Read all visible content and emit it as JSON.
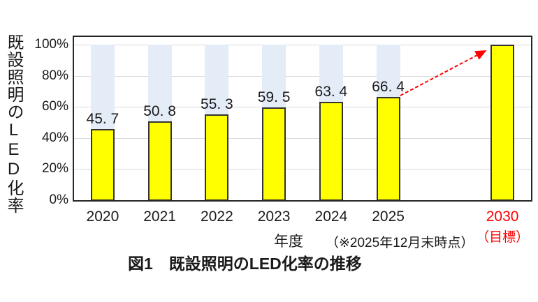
{
  "figure": {
    "caption": "図1　既設照明のLED化率の推移",
    "y_axis_title": "既設照明のLED化率",
    "x_axis_title": "年度",
    "x_axis_note": "（※2025年12月末時点）",
    "target_sub_label": "（目標）"
  },
  "colors": {
    "bar_fill": "#FFFF00",
    "bar_border": "#333333",
    "bg_track": "#E3ECF7",
    "gridline": "#D9D9D9",
    "plot_border": "#262626",
    "text": "#1A1A1A",
    "target_red": "#FF0000"
  },
  "chart_data": {
    "type": "bar",
    "title": "図1　既設照明のLED化率の推移",
    "xlabel": "年度",
    "ylabel": "既設照明のLED化率",
    "ylim": [
      0,
      105
    ],
    "yticks": [
      0,
      20,
      40,
      60,
      80,
      100
    ],
    "ytick_labels": [
      "0%",
      "20%",
      "40%",
      "60%",
      "80%",
      "100%"
    ],
    "grid": true,
    "legend_position": "none",
    "n_slots": 8,
    "categories": [
      "2020",
      "2021",
      "2022",
      "2023",
      "2024",
      "2025",
      "2030"
    ],
    "slots": [
      0,
      1,
      2,
      3,
      4,
      5,
      7
    ],
    "values": [
      45.7,
      50.8,
      55.3,
      59.5,
      63.4,
      66.4,
      100
    ],
    "value_labels": [
      "45. 7",
      "50. 8",
      "55. 3",
      "59. 5",
      "63. 4",
      "66. 4",
      ""
    ],
    "bg_track": [
      true,
      true,
      true,
      true,
      true,
      true,
      false
    ],
    "category_label_colors": [
      "#1A1A1A",
      "#1A1A1A",
      "#1A1A1A",
      "#1A1A1A",
      "#1A1A1A",
      "#1A1A1A",
      "#FF0000"
    ],
    "category_sub_labels": [
      "",
      "",
      "",
      "",
      "",
      "",
      "（目標）"
    ],
    "annotation_arrow": {
      "from_category": "2025",
      "from_value": 66.4,
      "to_category": "2030",
      "to_value": 100,
      "style": "dashed",
      "color": "#FF0000"
    }
  }
}
